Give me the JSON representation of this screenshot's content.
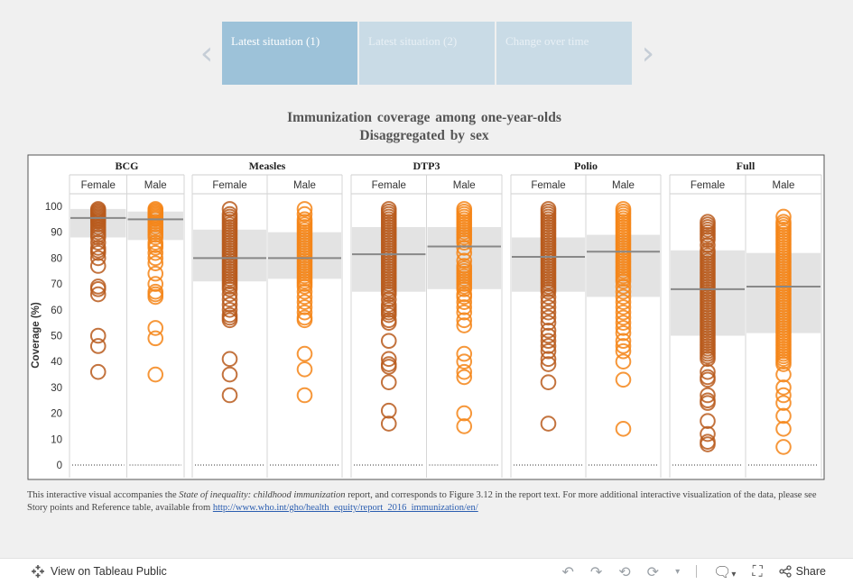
{
  "nav": {
    "prev_glyph": "‹",
    "next_glyph": "›",
    "tabs": [
      {
        "label": "Latest situation (1)",
        "active": true
      },
      {
        "label": "Latest situation (2)",
        "active": false
      },
      {
        "label": "Change over time",
        "active": false
      }
    ]
  },
  "title": {
    "line1": "Immunization coverage among one-year-olds",
    "line2": "Disaggregated by sex"
  },
  "chart_data": {
    "type": "scatter",
    "ylabel": "Coverage (%)",
    "ylim": [
      0,
      100
    ],
    "yticks": [
      0,
      10,
      20,
      30,
      40,
      50,
      60,
      70,
      80,
      90,
      100
    ],
    "colors": {
      "Female": "#b85a1c",
      "Male": "#f58518",
      "median_line": "#888888",
      "band": "#e3e3e3"
    },
    "groups": [
      {
        "name": "BCG",
        "panels": [
          {
            "sex": "Female",
            "median": 95.5,
            "band": [
              88,
              99
            ],
            "values": [
              99,
              98.5,
              98,
              97.5,
              97,
              96.5,
              96,
              95.5,
              95,
              94.5,
              94,
              93,
              92,
              91,
              90,
              89,
              88,
              86,
              84,
              83,
              82,
              80,
              77,
              69,
              68,
              66,
              50,
              46,
              36
            ]
          },
          {
            "sex": "Male",
            "median": 95,
            "band": [
              87,
              98
            ],
            "values": [
              99,
              98.5,
              98,
              97.5,
              97,
              96.5,
              96,
              95.5,
              95,
              94,
              93,
              92,
              91,
              90,
              89,
              88,
              86,
              85,
              84,
              82,
              80,
              78,
              74,
              70,
              67,
              66,
              65,
              53,
              49,
              35
            ]
          }
        ]
      },
      {
        "name": "Measles",
        "panels": [
          {
            "sex": "Female",
            "median": 80,
            "band": [
              71,
              91
            ],
            "values": [
              99,
              97,
              96,
              95,
              94,
              93,
              92,
              91,
              90,
              89,
              88,
              87,
              86,
              85,
              84,
              83,
              82,
              81,
              80,
              79,
              78,
              77,
              76,
              75,
              74,
              73,
              72,
              71,
              70,
              69,
              68,
              66,
              64,
              62,
              60,
              58,
              57,
              56,
              41,
              35,
              27
            ]
          },
          {
            "sex": "Male",
            "median": 80,
            "band": [
              72,
              90
            ],
            "values": [
              99,
              97,
              95,
              94,
              93,
              92,
              91,
              90,
              89,
              88,
              87,
              86,
              85,
              84,
              83,
              82,
              81,
              80,
              79,
              78,
              77,
              76,
              75,
              74,
              73,
              72,
              71,
              70,
              69,
              67,
              65,
              63,
              61,
              59,
              57,
              56,
              43,
              37,
              27
            ]
          }
        ]
      },
      {
        "name": "DTP3",
        "panels": [
          {
            "sex": "Female",
            "median": 81.5,
            "band": [
              67,
              92
            ],
            "values": [
              99,
              98,
              97,
              96,
              95,
              94,
              93,
              92,
              91,
              90,
              89,
              88,
              87,
              86,
              85,
              84,
              83,
              82,
              81,
              80,
              79,
              78,
              77,
              76,
              75,
              74,
              73,
              72,
              71,
              70,
              69,
              68,
              67,
              66,
              64,
              62,
              61,
              60,
              59,
              58,
              56,
              55,
              48,
              41,
              39,
              38,
              32,
              21,
              16
            ]
          },
          {
            "sex": "Male",
            "median": 84.5,
            "band": [
              68,
              92
            ],
            "values": [
              99,
              98,
              97,
              96,
              95,
              94,
              93,
              92,
              91,
              90,
              89,
              88,
              87,
              86,
              84,
              82,
              79,
              77,
              76,
              75,
              74,
              73,
              72,
              71,
              70,
              69,
              68,
              66,
              65,
              63,
              61,
              59,
              56,
              54,
              43,
              40,
              36,
              34,
              20,
              15
            ]
          }
        ]
      },
      {
        "name": "Polio",
        "panels": [
          {
            "sex": "Female",
            "median": 80.5,
            "band": [
              67,
              88
            ],
            "values": [
              99,
              98,
              97,
              96,
              95,
              94,
              93,
              92,
              91,
              90,
              89,
              88,
              87,
              86,
              85,
              84,
              83,
              82,
              81,
              80,
              79,
              78,
              77,
              76,
              75,
              74,
              73,
              72,
              71,
              70,
              69,
              68,
              67,
              65,
              63,
              61,
              59,
              57,
              55,
              52,
              50,
              48,
              46,
              44,
              41,
              39,
              32,
              16
            ]
          },
          {
            "sex": "Male",
            "median": 82.5,
            "band": [
              65,
              89
            ],
            "values": [
              99,
              98,
              97,
              96,
              95,
              94,
              93,
              92,
              91,
              90,
              89,
              88,
              87,
              86,
              85,
              84,
              83,
              82,
              81,
              80,
              79,
              78,
              77,
              76,
              75,
              74,
              73,
              72,
              71,
              69,
              67,
              65,
              63,
              61,
              59,
              57,
              55,
              53,
              51,
              48,
              46,
              44,
              40,
              33,
              14
            ]
          }
        ]
      },
      {
        "name": "Full",
        "panels": [
          {
            "sex": "Female",
            "median": 68,
            "band": [
              50,
              83
            ],
            "values": [
              94,
              93,
              92,
              91,
              90,
              89,
              88,
              87,
              85,
              83,
              82,
              81,
              80,
              79,
              78,
              77,
              76,
              75,
              74,
              73,
              72,
              71,
              70,
              69,
              68,
              67,
              66,
              65,
              64,
              63,
              62,
              61,
              60,
              59,
              58,
              57,
              56,
              55,
              54,
              53,
              52,
              51,
              50,
              49,
              48,
              47,
              46,
              45,
              44,
              43,
              42,
              41,
              36,
              34,
              33,
              27,
              25,
              24,
              17,
              12,
              9,
              8
            ]
          },
          {
            "sex": "Male",
            "median": 69,
            "band": [
              51,
              82
            ],
            "values": [
              96,
              94,
              93,
              92,
              91,
              90,
              89,
              88,
              87,
              86,
              85,
              84,
              83,
              82,
              81,
              80,
              79,
              78,
              77,
              76,
              75,
              74,
              73,
              72,
              71,
              70,
              69,
              68,
              67,
              66,
              65,
              64,
              63,
              62,
              61,
              60,
              59,
              58,
              57,
              56,
              55,
              54,
              53,
              52,
              51,
              50,
              49,
              48,
              47,
              46,
              45,
              44,
              43,
              42,
              41,
              40,
              39,
              35,
              30,
              27,
              24,
              19,
              14,
              7
            ]
          }
        ]
      }
    ]
  },
  "caption": {
    "part1": "This interactive visual accompanies the ",
    "italic": "State of inequality: childhood immunization",
    "part2": " report, and corresponds to Figure 3.12 in the report text. For more additional interactive visualization of the data, please see Story points and Reference table, available from ",
    "link": "http://www.who.int/gho/health_equity/report_2016_immunization/en/"
  },
  "footer": {
    "view_label": "View on Tableau Public",
    "share_label": "Share"
  }
}
